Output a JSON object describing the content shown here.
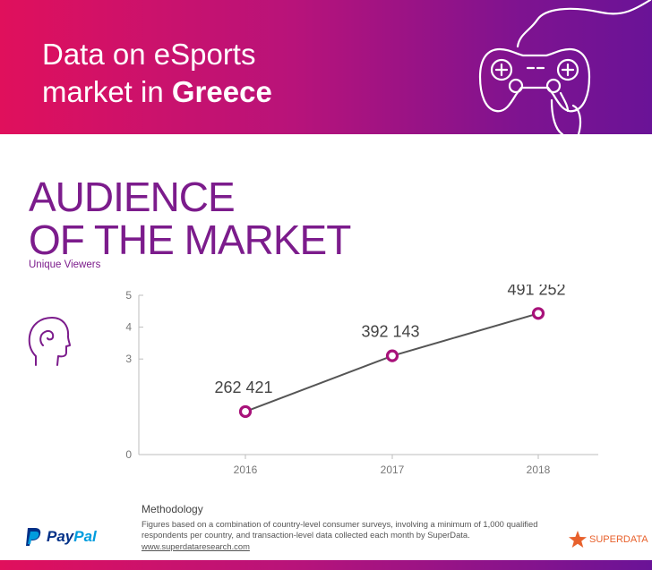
{
  "header": {
    "title_line1": "Data on eSports",
    "title_line2_plain": "market in ",
    "title_line2_bold": "Greece"
  },
  "section": {
    "title_line1": "AUDIENCE",
    "title_line2": "OF THE MARKET",
    "subtitle": "Unique Viewers"
  },
  "colors": {
    "accent_purple": "#7c1c8c",
    "marker": "#a8127a",
    "line": "#555555"
  },
  "icons": {
    "header": "game-controller-icon",
    "audience": "person-head-icon",
    "sponsor": "paypal-logo",
    "source": "superdata-star-logo"
  },
  "chart_data": {
    "type": "line",
    "x": [
      "2016",
      "2017",
      "2018"
    ],
    "y_axis_values": [
      1.35,
      3.1,
      4.43
    ],
    "ylim": [
      0,
      5
    ],
    "yticks": [
      "0",
      "3",
      "4",
      "5"
    ],
    "data_labels": [
      "262 421",
      "392 143",
      "491 252"
    ],
    "grid": false
  },
  "methodology": {
    "title": "Methodology",
    "text": "Figures based on a combination of country-level consumer surveys, involving a minimum of 1,000 qualified respondents per country, and transaction-level data collected each month by SuperData.",
    "link": "www.superdataresearch.com"
  },
  "logos": {
    "paypal_pay": "Pay",
    "paypal_pal": "Pal",
    "superdata": "SUPERDATA"
  }
}
